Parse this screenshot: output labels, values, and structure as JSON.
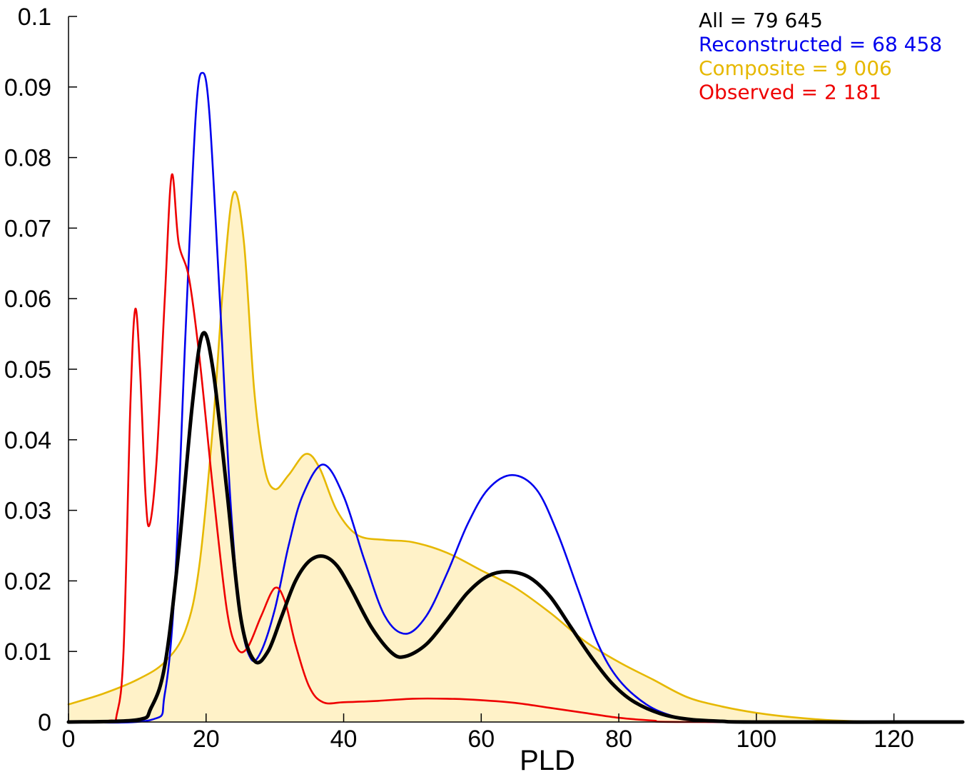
{
  "chart_data": {
    "type": "line",
    "xlabel": "PLD",
    "ylabel": "",
    "xlim": [
      0,
      130
    ],
    "ylim": [
      0,
      0.1
    ],
    "x_ticks": [
      0,
      20,
      40,
      60,
      80,
      100,
      120
    ],
    "x_tick_labels": [
      "0",
      "20",
      "40",
      "60",
      "80",
      "100",
      "120"
    ],
    "y_ticks": [
      0,
      0.01,
      0.02,
      0.03,
      0.04,
      0.05,
      0.06,
      0.07,
      0.08,
      0.09,
      0.1
    ],
    "y_tick_labels": [
      "0",
      "0.01",
      "0.02",
      "0.03",
      "0.04",
      "0.05",
      "0.06",
      "0.07",
      "0.08",
      "0.09",
      "0.1"
    ],
    "grid": false,
    "legend_position": "top-right",
    "series": [
      {
        "name": "Composite",
        "legend": "Composite = 9 006",
        "color": "#E6B800",
        "fill": "#FFF2C8",
        "filled": true,
        "points": [
          [
            0,
            0.0025
          ],
          [
            5,
            0.004
          ],
          [
            10,
            0.006
          ],
          [
            14,
            0.0085
          ],
          [
            17,
            0.013
          ],
          [
            19,
            0.022
          ],
          [
            21,
            0.042
          ],
          [
            22.5,
            0.062
          ],
          [
            24,
            0.075
          ],
          [
            25.5,
            0.068
          ],
          [
            27,
            0.047
          ],
          [
            28.5,
            0.036
          ],
          [
            30,
            0.033
          ],
          [
            32,
            0.035
          ],
          [
            34.5,
            0.038
          ],
          [
            36.5,
            0.036
          ],
          [
            39,
            0.03
          ],
          [
            42,
            0.0265
          ],
          [
            46,
            0.0258
          ],
          [
            50,
            0.0255
          ],
          [
            55,
            0.024
          ],
          [
            60,
            0.0215
          ],
          [
            65,
            0.019
          ],
          [
            70,
            0.0155
          ],
          [
            75,
            0.0115
          ],
          [
            80,
            0.0085
          ],
          [
            85,
            0.006
          ],
          [
            90,
            0.0035
          ],
          [
            95,
            0.0022
          ],
          [
            100,
            0.0013
          ],
          [
            105,
            0.0007
          ],
          [
            110,
            0.0003
          ],
          [
            115,
            0.0001
          ],
          [
            120,
            3e-05
          ],
          [
            125,
            0.0
          ],
          [
            130,
            0.0
          ]
        ]
      },
      {
        "name": "Reconstructed",
        "legend": "Reconstructed = 68 458",
        "color": "#0000EE",
        "filled": false,
        "points": [
          [
            0,
            0
          ],
          [
            12,
            0.0003
          ],
          [
            14,
            0.004
          ],
          [
            15.5,
            0.02
          ],
          [
            17,
            0.055
          ],
          [
            18.5,
            0.086
          ],
          [
            19.5,
            0.092
          ],
          [
            20.5,
            0.086
          ],
          [
            22,
            0.06
          ],
          [
            23.5,
            0.032
          ],
          [
            25,
            0.015
          ],
          [
            26.5,
            0.009
          ],
          [
            28,
            0.01
          ],
          [
            30,
            0.016
          ],
          [
            32,
            0.025
          ],
          [
            34,
            0.032
          ],
          [
            37,
            0.0365
          ],
          [
            40,
            0.032
          ],
          [
            43,
            0.023
          ],
          [
            46,
            0.015
          ],
          [
            49,
            0.0125
          ],
          [
            52,
            0.015
          ],
          [
            55,
            0.021
          ],
          [
            58,
            0.028
          ],
          [
            61,
            0.033
          ],
          [
            64.5,
            0.035
          ],
          [
            68,
            0.033
          ],
          [
            71,
            0.027
          ],
          [
            74,
            0.019
          ],
          [
            77,
            0.011
          ],
          [
            80,
            0.006
          ],
          [
            84,
            0.0025
          ],
          [
            88,
            0.0008
          ],
          [
            92,
            0.0002
          ],
          [
            96,
            0.0
          ],
          [
            130,
            0.0
          ]
        ]
      },
      {
        "name": "Observed",
        "legend": "Observed = 2 181",
        "color": "#EE0000",
        "filled": false,
        "points": [
          [
            0,
            0
          ],
          [
            6,
            0.0002
          ],
          [
            7,
            0.001
          ],
          [
            8,
            0.01
          ],
          [
            9,
            0.045
          ],
          [
            9.7,
            0.0585
          ],
          [
            10.4,
            0.05
          ],
          [
            11.2,
            0.032
          ],
          [
            11.8,
            0.028
          ],
          [
            12.8,
            0.037
          ],
          [
            14,
            0.06
          ],
          [
            15,
            0.0775
          ],
          [
            16,
            0.068
          ],
          [
            17.5,
            0.063
          ],
          [
            19,
            0.052
          ],
          [
            21,
            0.033
          ],
          [
            23,
            0.016
          ],
          [
            24.5,
            0.0105
          ],
          [
            26,
            0.0105
          ],
          [
            28,
            0.015
          ],
          [
            30,
            0.019
          ],
          [
            31.5,
            0.017
          ],
          [
            33,
            0.011
          ],
          [
            35,
            0.005
          ],
          [
            37,
            0.0028
          ],
          [
            40,
            0.0028
          ],
          [
            45,
            0.003
          ],
          [
            50,
            0.0033
          ],
          [
            55,
            0.0033
          ],
          [
            60,
            0.0031
          ],
          [
            65,
            0.0027
          ],
          [
            70,
            0.002
          ],
          [
            75,
            0.0013
          ],
          [
            80,
            0.0006
          ],
          [
            85,
            0.0002
          ],
          [
            90,
            0.0
          ],
          [
            130,
            0.0
          ]
        ]
      },
      {
        "name": "All",
        "legend": "All = 79 645",
        "color": "#000000",
        "filled": false,
        "points": [
          [
            0,
            0
          ],
          [
            10,
            0.0003
          ],
          [
            12,
            0.002
          ],
          [
            14,
            0.008
          ],
          [
            16,
            0.024
          ],
          [
            18,
            0.045
          ],
          [
            19.5,
            0.055
          ],
          [
            21,
            0.05
          ],
          [
            23,
            0.033
          ],
          [
            25,
            0.015
          ],
          [
            27,
            0.0087
          ],
          [
            29,
            0.01
          ],
          [
            31,
            0.015
          ],
          [
            33,
            0.02
          ],
          [
            35,
            0.0228
          ],
          [
            37,
            0.0235
          ],
          [
            39,
            0.0222
          ],
          [
            41,
            0.019
          ],
          [
            44,
            0.0135
          ],
          [
            47,
            0.0098
          ],
          [
            49,
            0.0093
          ],
          [
            52,
            0.011
          ],
          [
            55,
            0.0145
          ],
          [
            58,
            0.0183
          ],
          [
            61,
            0.0207
          ],
          [
            64,
            0.0213
          ],
          [
            67,
            0.0205
          ],
          [
            70,
            0.0178
          ],
          [
            73,
            0.0135
          ],
          [
            76,
            0.0092
          ],
          [
            79,
            0.0055
          ],
          [
            82,
            0.003
          ],
          [
            86,
            0.0012
          ],
          [
            90,
            0.0004
          ],
          [
            95,
            0.0001
          ],
          [
            100,
            0.0
          ],
          [
            130,
            0.0
          ]
        ]
      }
    ]
  }
}
